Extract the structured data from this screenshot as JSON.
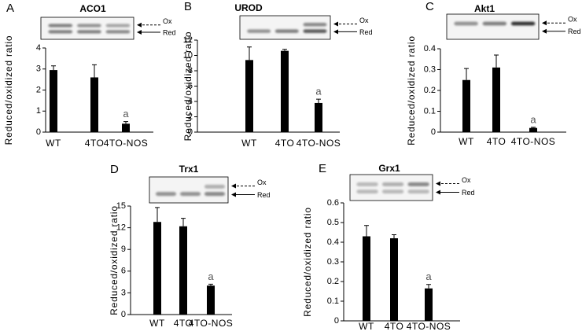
{
  "chart_data": [
    {
      "type": "bar",
      "panel": "A",
      "title": "ACO1",
      "ylabel": "Reduced/oxidized ratio",
      "ox_label": "Ox",
      "red_label": "Red",
      "categories": [
        "WT",
        "4TO",
        "4TO-NOS"
      ],
      "values": [
        2.95,
        2.6,
        0.4
      ],
      "errors": [
        0.2,
        0.6,
        0.1
      ],
      "annotation": "a",
      "color": "#000000",
      "ylim": [
        0,
        4
      ],
      "yticks": [
        0,
        1,
        2,
        3,
        4
      ]
    },
    {
      "type": "bar",
      "panel": "B",
      "title": "UROD",
      "ylabel": "Reduced/oxidized ratio",
      "ox_label": "Ox",
      "red_label": "Red",
      "categories": [
        "WT",
        "4TO",
        "4TO-NOS"
      ],
      "values": [
        9.4,
        10.6,
        3.8
      ],
      "errors": [
        1.7,
        0.2,
        0.5
      ],
      "annotation": "a",
      "color": "#000000",
      "ylim": [
        0,
        12
      ],
      "yticks": [
        0,
        2,
        4,
        6,
        8,
        10,
        12
      ]
    },
    {
      "type": "bar",
      "panel": "C",
      "title": "Akt1",
      "ylabel": "Reduced/oxidized ratio",
      "ox_label": "Ox",
      "red_label": "Red",
      "categories": [
        "WT",
        "4TO",
        "4TO-NOS"
      ],
      "values": [
        0.25,
        0.31,
        0.02
      ],
      "errors": [
        0.055,
        0.06,
        0.003
      ],
      "annotation": "a",
      "color": "#000000",
      "ylim": [
        0,
        0.4
      ],
      "yticks": [
        0,
        0.1,
        0.2,
        0.3,
        0.4
      ]
    },
    {
      "type": "bar",
      "panel": "D",
      "title": "Trx1",
      "ylabel": "Reduced/oxidized ratio",
      "ox_label": "Ox",
      "red_label": "Red",
      "categories": [
        "WT",
        "4TO",
        "4TO-NOS"
      ],
      "values": [
        12.8,
        12.2,
        4
      ],
      "errors": [
        2,
        1.1,
        0.2
      ],
      "annotation": "a",
      "color": "#000000",
      "ylim": [
        0,
        15
      ],
      "yticks": [
        0,
        3,
        6,
        9,
        12,
        15
      ]
    },
    {
      "type": "bar",
      "panel": "E",
      "title": "Grx1",
      "ylabel": "Reduced/oxidized ratio",
      "ox_label": "Ox",
      "red_label": "Red",
      "categories": [
        "WT",
        "4TO",
        "4TO-NOS"
      ],
      "values": [
        0.43,
        0.42,
        0.165
      ],
      "errors": [
        0.055,
        0.018,
        0.02
      ],
      "annotation": "a",
      "color": "#000000",
      "ylim": [
        0,
        0.6
      ],
      "yticks": [
        0,
        0.1,
        0.2,
        0.3,
        0.4,
        0.5,
        0.6
      ]
    }
  ]
}
